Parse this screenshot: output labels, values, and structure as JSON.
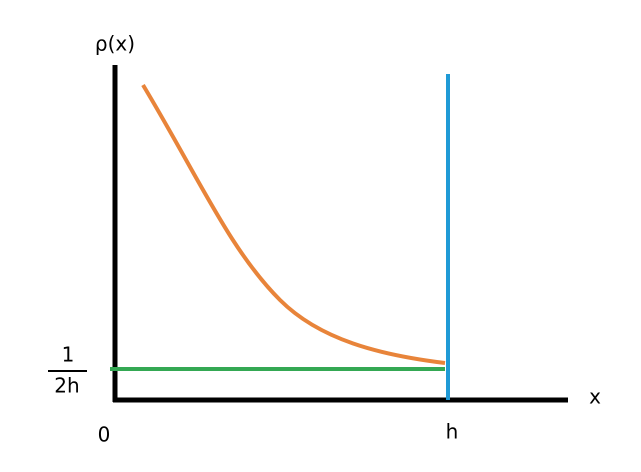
{
  "axes": {
    "y_label": "ρ(x)",
    "x_label": "x",
    "origin_label": "0",
    "h_label": "h"
  },
  "level_label": {
    "numerator": "1",
    "denominator": "2h"
  }
}
